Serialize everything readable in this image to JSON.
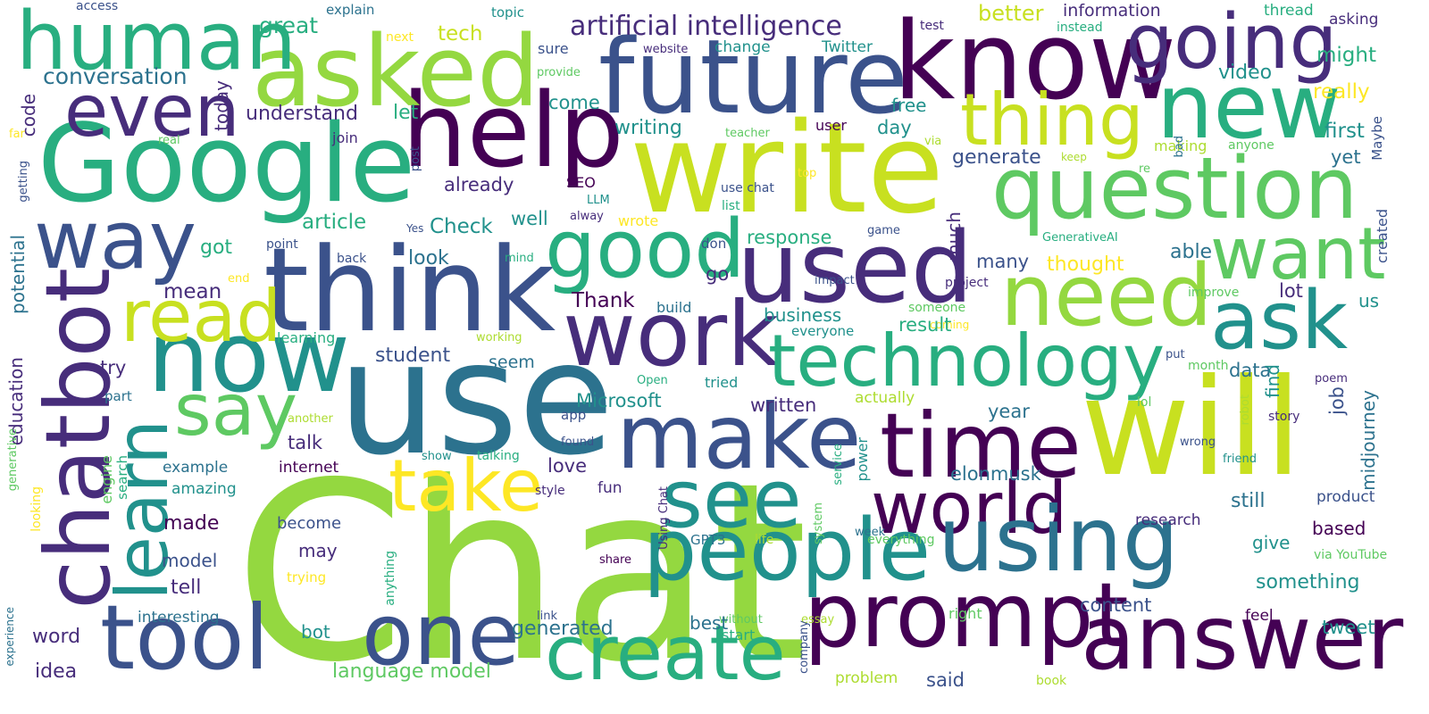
{
  "palette": {
    "v1": "#440154",
    "v2": "#472d7b",
    "v3": "#3b528b",
    "v4": "#2c728e",
    "v5": "#21918c",
    "v6": "#28ae80",
    "v7": "#5ec962",
    "v8": "#addc30",
    "v9": "#fde725",
    "v10": "#94d840",
    "v11": "#c8e020"
  },
  "words": [
    {
      "t": "Chat",
      "c": "v10"
    },
    {
      "t": "use",
      "c": "v4"
    },
    {
      "t": "will",
      "c": "v11"
    },
    {
      "t": "write",
      "c": "v11"
    },
    {
      "t": "Google",
      "c": "v6"
    },
    {
      "t": "think",
      "c": "v3"
    },
    {
      "t": "know",
      "c": "v1"
    },
    {
      "t": "future",
      "c": "v3"
    },
    {
      "t": "help",
      "c": "v1"
    },
    {
      "t": "asked",
      "c": "v10"
    },
    {
      "t": "human",
      "c": "v6"
    },
    {
      "t": "going",
      "c": "v2"
    },
    {
      "t": "question",
      "c": "v7"
    },
    {
      "t": "new",
      "c": "v6"
    },
    {
      "t": "thing",
      "c": "v11"
    },
    {
      "t": "even",
      "c": "v2"
    },
    {
      "t": "way",
      "c": "v3"
    },
    {
      "t": "chatbot",
      "c": "v2"
    },
    {
      "t": "now",
      "c": "v5"
    },
    {
      "t": "read",
      "c": "v11"
    },
    {
      "t": "good",
      "c": "v6"
    },
    {
      "t": "used",
      "c": "v2"
    },
    {
      "t": "want",
      "c": "v7"
    },
    {
      "t": "need",
      "c": "v10"
    },
    {
      "t": "ask",
      "c": "v5"
    },
    {
      "t": "work",
      "c": "v2"
    },
    {
      "t": "technology",
      "c": "v6"
    },
    {
      "t": "make",
      "c": "v3"
    },
    {
      "t": "time",
      "c": "v1"
    },
    {
      "t": "learn",
      "c": "v5"
    },
    {
      "t": "say",
      "c": "v7"
    },
    {
      "t": "take",
      "c": "v9"
    },
    {
      "t": "see",
      "c": "v5"
    },
    {
      "t": "world",
      "c": "v1"
    },
    {
      "t": "people",
      "c": "v5"
    },
    {
      "t": "using",
      "c": "v4"
    },
    {
      "t": "tool",
      "c": "v3"
    },
    {
      "t": "one",
      "c": "v3"
    },
    {
      "t": "create",
      "c": "v6"
    },
    {
      "t": "prompt",
      "c": "v1"
    },
    {
      "t": "answer",
      "c": "v1"
    },
    {
      "t": "artificial intelligence",
      "c": "v2"
    },
    {
      "t": "conversation",
      "c": "v4"
    },
    {
      "t": "great",
      "c": "v6"
    },
    {
      "t": "let",
      "c": "v6"
    },
    {
      "t": "tech",
      "c": "v11"
    },
    {
      "t": "better",
      "c": "v11"
    },
    {
      "t": "information",
      "c": "v2"
    },
    {
      "t": "thread",
      "c": "v6"
    },
    {
      "t": "asking",
      "c": "v2"
    },
    {
      "t": "access",
      "c": "v3"
    },
    {
      "t": "explain",
      "c": "v4"
    },
    {
      "t": "topic",
      "c": "v5"
    },
    {
      "t": "test",
      "c": "v2"
    },
    {
      "t": "instead",
      "c": "v6"
    },
    {
      "t": "next",
      "c": "v9"
    },
    {
      "t": "sure",
      "c": "v3"
    },
    {
      "t": "website",
      "c": "v2"
    },
    {
      "t": "change",
      "c": "v5"
    },
    {
      "t": "Twitter",
      "c": "v5"
    },
    {
      "t": "might",
      "c": "v6"
    },
    {
      "t": "provide",
      "c": "v7"
    },
    {
      "t": "video",
      "c": "v5"
    },
    {
      "t": "really",
      "c": "v9"
    },
    {
      "t": "code",
      "c": "v2"
    },
    {
      "t": "today",
      "c": "v2"
    },
    {
      "t": "understand",
      "c": "v2"
    },
    {
      "t": "come",
      "c": "v5"
    },
    {
      "t": "free",
      "c": "v5"
    },
    {
      "t": "writing",
      "c": "v5"
    },
    {
      "t": "day",
      "c": "v5"
    },
    {
      "t": "first",
      "c": "v5"
    },
    {
      "t": "far",
      "c": "v9"
    },
    {
      "t": "real",
      "c": "v7"
    },
    {
      "t": "join",
      "c": "v2"
    },
    {
      "t": "teacher",
      "c": "v7"
    },
    {
      "t": "user",
      "c": "v1"
    },
    {
      "t": "via",
      "c": "v8"
    },
    {
      "t": "making",
      "c": "v8"
    },
    {
      "t": "anyone",
      "c": "v7"
    },
    {
      "t": "generate",
      "c": "v3"
    },
    {
      "t": "keep",
      "c": "v8"
    },
    {
      "t": "yet",
      "c": "v4"
    },
    {
      "t": "Maybe",
      "c": "v3"
    },
    {
      "t": "getting",
      "c": "v3"
    },
    {
      "t": "post",
      "c": "v3"
    },
    {
      "t": "SEO",
      "c": "v1"
    },
    {
      "t": "already",
      "c": "v2"
    },
    {
      "t": "use chat",
      "c": "v3"
    },
    {
      "t": "top",
      "c": "v9"
    },
    {
      "t": "re",
      "c": "v7"
    },
    {
      "t": "bad",
      "c": "v4"
    },
    {
      "t": "LLM",
      "c": "v5"
    },
    {
      "t": "list",
      "c": "v6"
    },
    {
      "t": "alway",
      "c": "v2"
    },
    {
      "t": "article",
      "c": "v6"
    },
    {
      "t": "Check",
      "c": "v5"
    },
    {
      "t": "well",
      "c": "v5"
    },
    {
      "t": "wrote",
      "c": "v9"
    },
    {
      "t": "don",
      "c": "v3"
    },
    {
      "t": "game",
      "c": "v3"
    },
    {
      "t": "GenerativeAI",
      "c": "v6"
    },
    {
      "t": "created",
      "c": "v3"
    },
    {
      "t": "Yes",
      "c": "v3"
    },
    {
      "t": "got",
      "c": "v6"
    },
    {
      "t": "look",
      "c": "v4"
    },
    {
      "t": "mind",
      "c": "v6"
    },
    {
      "t": "response",
      "c": "v6"
    },
    {
      "t": "much",
      "c": "v2"
    },
    {
      "t": "many",
      "c": "v3"
    },
    {
      "t": "able",
      "c": "v4"
    },
    {
      "t": "thought",
      "c": "v9"
    },
    {
      "t": "potential",
      "c": "v4"
    },
    {
      "t": "point",
      "c": "v3"
    },
    {
      "t": "back",
      "c": "v3"
    },
    {
      "t": "end",
      "c": "v9"
    },
    {
      "t": "impact",
      "c": "v3"
    },
    {
      "t": "project",
      "c": "v2"
    },
    {
      "t": "improve",
      "c": "v7"
    },
    {
      "t": "mean",
      "c": "v2"
    },
    {
      "t": "go",
      "c": "v2"
    },
    {
      "t": "Thank",
      "c": "v1"
    },
    {
      "t": "build",
      "c": "v4"
    },
    {
      "t": "business",
      "c": "v5"
    },
    {
      "t": "someone",
      "c": "v7"
    },
    {
      "t": "coming",
      "c": "v9"
    },
    {
      "t": "lot",
      "c": "v2"
    },
    {
      "t": "us",
      "c": "v5"
    },
    {
      "t": "learning",
      "c": "v6"
    },
    {
      "t": "working",
      "c": "v8"
    },
    {
      "t": "everyone",
      "c": "v5"
    },
    {
      "t": "result",
      "c": "v6"
    },
    {
      "t": "education",
      "c": "v2"
    },
    {
      "t": "try",
      "c": "v2"
    },
    {
      "t": "student",
      "c": "v3"
    },
    {
      "t": "seem",
      "c": "v4"
    },
    {
      "t": "put",
      "c": "v3"
    },
    {
      "t": "month",
      "c": "v7"
    },
    {
      "t": "data",
      "c": "v4"
    },
    {
      "t": "find",
      "c": "v5"
    },
    {
      "t": "poem",
      "c": "v2"
    },
    {
      "t": "part",
      "c": "v4"
    },
    {
      "t": "Open",
      "c": "v6"
    },
    {
      "t": "tried",
      "c": "v5"
    },
    {
      "t": "Microsoft",
      "c": "v5"
    },
    {
      "t": "written",
      "c": "v2"
    },
    {
      "t": "actually",
      "c": "v8"
    },
    {
      "t": "lol",
      "c": "v7"
    },
    {
      "t": "generative",
      "c": "v7"
    },
    {
      "t": "another",
      "c": "v8"
    },
    {
      "t": "talk",
      "c": "v2"
    },
    {
      "t": "app",
      "c": "v3"
    },
    {
      "t": "year",
      "c": "v4"
    },
    {
      "t": "robot",
      "c": "v8"
    },
    {
      "t": "job",
      "c": "v3"
    },
    {
      "t": "midjourney",
      "c": "v4"
    },
    {
      "t": "found",
      "c": "v3"
    },
    {
      "t": "wrong",
      "c": "v3"
    },
    {
      "t": "story",
      "c": "v2"
    },
    {
      "t": "engine",
      "c": "v7"
    },
    {
      "t": "search",
      "c": "v6"
    },
    {
      "t": "example",
      "c": "v4"
    },
    {
      "t": "internet",
      "c": "v1"
    },
    {
      "t": "show",
      "c": "v5"
    },
    {
      "t": "talking",
      "c": "v6"
    },
    {
      "t": "love",
      "c": "v2"
    },
    {
      "t": "service",
      "c": "v6"
    },
    {
      "t": "friend",
      "c": "v5"
    },
    {
      "t": "elonmusk",
      "c": "v4"
    },
    {
      "t": "amazing",
      "c": "v5"
    },
    {
      "t": "style",
      "c": "v2"
    },
    {
      "t": "fun",
      "c": "v2"
    },
    {
      "t": "power",
      "c": "v5"
    },
    {
      "t": "still",
      "c": "v4"
    },
    {
      "t": "product",
      "c": "v3"
    },
    {
      "t": "system",
      "c": "v7"
    },
    {
      "t": "Using Chat",
      "c": "v2"
    },
    {
      "t": "made",
      "c": "v1"
    },
    {
      "t": "week",
      "c": "v4"
    },
    {
      "t": "looking",
      "c": "v9"
    },
    {
      "t": "become",
      "c": "v3"
    },
    {
      "t": "research",
      "c": "v2"
    },
    {
      "t": "based",
      "c": "v1"
    },
    {
      "t": "GPT3",
      "c": "v4"
    },
    {
      "t": "life",
      "c": "v8"
    },
    {
      "t": "everything",
      "c": "v7"
    },
    {
      "t": "give",
      "c": "v5"
    },
    {
      "t": "model",
      "c": "v3"
    },
    {
      "t": "may",
      "c": "v2"
    },
    {
      "t": "via YouTube",
      "c": "v7"
    },
    {
      "t": "share",
      "c": "v1"
    },
    {
      "t": "trying",
      "c": "v9"
    },
    {
      "t": "anything",
      "c": "v6"
    },
    {
      "t": "something",
      "c": "v5"
    },
    {
      "t": "tell",
      "c": "v2"
    },
    {
      "t": "interesting",
      "c": "v4"
    },
    {
      "t": "link",
      "c": "v3"
    },
    {
      "t": "without",
      "c": "v7"
    },
    {
      "t": "essay",
      "c": "v8"
    },
    {
      "t": "right",
      "c": "v7"
    },
    {
      "t": "feel",
      "c": "v1"
    },
    {
      "t": "content",
      "c": "v3"
    },
    {
      "t": "experience",
      "c": "v4"
    },
    {
      "t": "best",
      "c": "v4"
    },
    {
      "t": "tweet",
      "c": "v5"
    },
    {
      "t": "word",
      "c": "v2"
    },
    {
      "t": "bot",
      "c": "v5"
    },
    {
      "t": "generated",
      "c": "v4"
    },
    {
      "t": "start",
      "c": "v6"
    },
    {
      "t": "company",
      "c": "v3"
    },
    {
      "t": "idea",
      "c": "v2"
    },
    {
      "t": "language model",
      "c": "v7"
    },
    {
      "t": "problem",
      "c": "v8"
    },
    {
      "t": "said",
      "c": "v3"
    },
    {
      "t": "book",
      "c": "v8"
    }
  ]
}
